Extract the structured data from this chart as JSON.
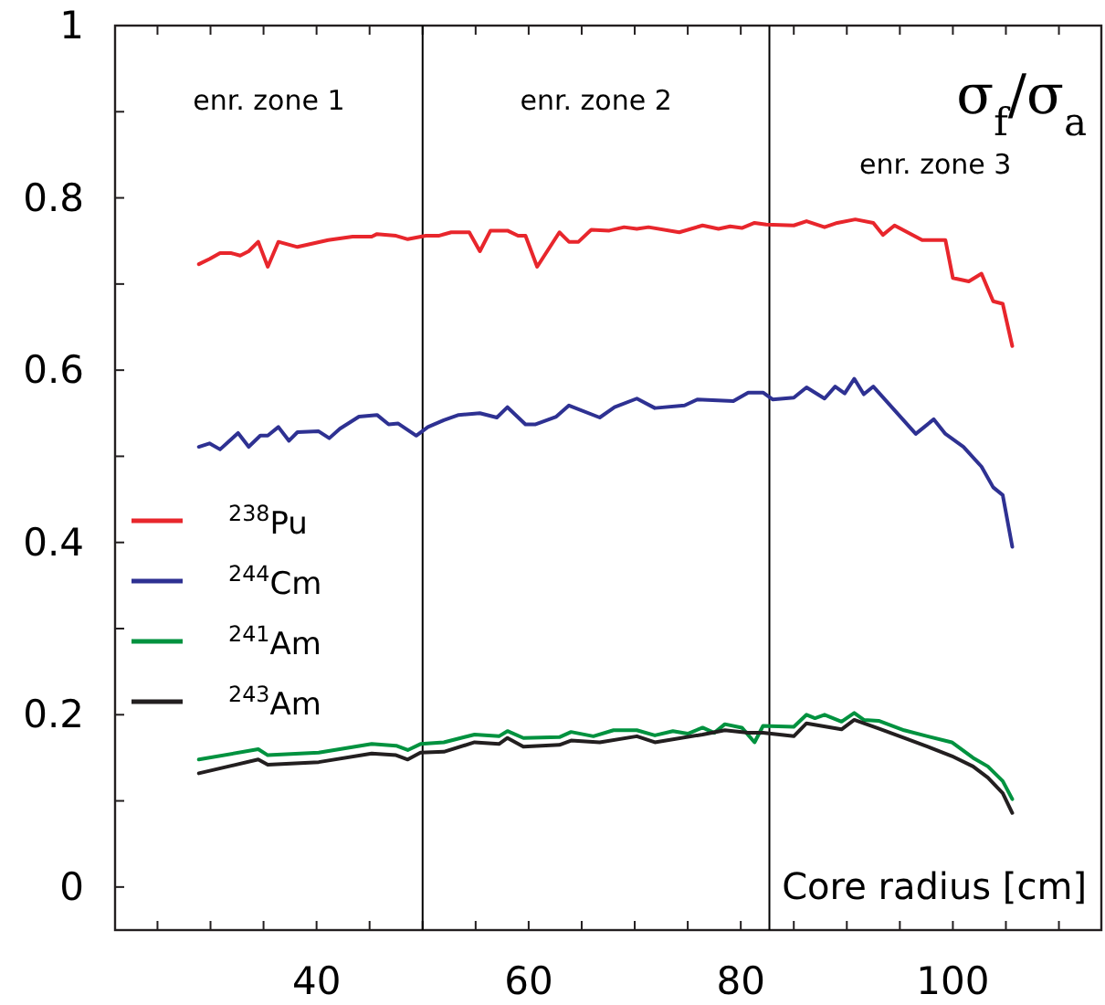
{
  "chart_data": {
    "type": "line",
    "title": "σ$_{f}$/σ$_{a}$",
    "xlabel": "Core radius [cm]",
    "annotations": [
      "enr. zone 1",
      "enr. zone 2",
      "enr. zone 3"
    ],
    "xlim": [
      21,
      114
    ],
    "ylim": [
      -0.05,
      1
    ],
    "xticks": [
      {
        "value": 25,
        "label": null
      },
      {
        "value": 30,
        "label": null
      },
      {
        "value": 35,
        "label": null
      },
      40,
      {
        "value": 45,
        "label": null
      },
      {
        "value": 50,
        "label": null
      },
      {
        "value": 55,
        "label": null
      },
      60,
      {
        "value": 65,
        "label": null
      },
      {
        "value": 70,
        "label": null
      },
      {
        "value": 75,
        "label": null
      },
      80,
      {
        "value": 85,
        "label": null
      },
      {
        "value": 90,
        "label": null
      },
      {
        "value": 95,
        "label": null
      },
      100,
      {
        "value": 105,
        "label": null
      },
      {
        "value": 110,
        "label": null
      }
    ],
    "yticks": [
      0,
      {
        "value": 0.1,
        "label": null
      },
      0.2,
      {
        "value": 0.3,
        "label": null
      },
      0.4,
      {
        "value": 0.5,
        "label": null
      },
      0.6,
      {
        "value": 0.7,
        "label": null
      },
      0.8,
      {
        "value": 0.9,
        "label": null
      },
      1
    ],
    "ref_lines": [
      {
        "axis": "x",
        "value": 50,
        "color": "#000000"
      },
      {
        "axis": "x",
        "value": 82.7,
        "color": "#000000"
      }
    ],
    "legend": "left",
    "grid": false,
    "marker": "none",
    "line_style": "solid",
    "series": [
      {
        "name": "$^{238}$Pu",
        "color": "#e8262c",
        "x": [
          28.9,
          29.9,
          30.9,
          31.9,
          32.8,
          33.6,
          34.5,
          35.4,
          36.4,
          38.2,
          41.1,
          43.4,
          45.2,
          45.7,
          47.5,
          48.6,
          50.3,
          51.5,
          52.7,
          54.4,
          55.4,
          56.4,
          58,
          59,
          59.7,
          60.8,
          62.9,
          63.8,
          64.7,
          65.9,
          67.6,
          69,
          70.2,
          71.3,
          74.2,
          76.4,
          77.9,
          79,
          80.1,
          81.3,
          82.4,
          85,
          86.2,
          87.9,
          89.1,
          90.8,
          92.5,
          93.4,
          94.5,
          97.1,
          99.3,
          100,
          101.5,
          102.7,
          103.8,
          104.7,
          105.6
        ],
        "values": [
          0.723,
          0.729,
          0.736,
          0.736,
          0.733,
          0.738,
          0.749,
          0.72,
          0.749,
          0.743,
          0.751,
          0.755,
          0.755,
          0.758,
          0.756,
          0.752,
          0.756,
          0.756,
          0.76,
          0.76,
          0.738,
          0.762,
          0.762,
          0.756,
          0.756,
          0.72,
          0.76,
          0.749,
          0.749,
          0.763,
          0.762,
          0.766,
          0.764,
          0.766,
          0.76,
          0.768,
          0.764,
          0.767,
          0.765,
          0.771,
          0.769,
          0.768,
          0.773,
          0.766,
          0.771,
          0.775,
          0.771,
          0.757,
          0.768,
          0.751,
          0.751,
          0.707,
          0.703,
          0.712,
          0.68,
          0.677,
          0.628
        ]
      },
      {
        "name": "$^{244}$Cm",
        "color": "#2e3192",
        "x": [
          28.9,
          29.9,
          30.9,
          32.6,
          33.6,
          34.7,
          35.4,
          36.4,
          37.4,
          38.2,
          40.2,
          41.2,
          42.2,
          44,
          45.7,
          46.8,
          47.7,
          49.4,
          50.5,
          52,
          53.4,
          55.4,
          57,
          58,
          59.7,
          60.6,
          62.6,
          63.8,
          66.7,
          68.1,
          70.2,
          71.9,
          74.7,
          75.9,
          79.3,
          80.7,
          82.1,
          83,
          85,
          86.2,
          87.9,
          88.9,
          89.8,
          90.7,
          91.6,
          92.5,
          96.5,
          98.2,
          99.3,
          101,
          102.7,
          103.8,
          104.7,
          105.6
        ],
        "values": [
          0.511,
          0.515,
          0.508,
          0.527,
          0.511,
          0.524,
          0.524,
          0.534,
          0.518,
          0.528,
          0.529,
          0.521,
          0.532,
          0.546,
          0.548,
          0.537,
          0.538,
          0.524,
          0.534,
          0.542,
          0.548,
          0.55,
          0.545,
          0.557,
          0.537,
          0.537,
          0.546,
          0.559,
          0.545,
          0.557,
          0.567,
          0.556,
          0.559,
          0.566,
          0.564,
          0.574,
          0.574,
          0.566,
          0.568,
          0.58,
          0.567,
          0.581,
          0.573,
          0.59,
          0.572,
          0.581,
          0.526,
          0.543,
          0.526,
          0.511,
          0.488,
          0.464,
          0.455,
          0.395
        ]
      },
      {
        "name": "$^{241}$Am",
        "color": "#00923f",
        "x": [
          28.9,
          34.5,
          35.4,
          40.2,
          45.2,
          47.5,
          48.6,
          49.8,
          52,
          54.9,
          57.2,
          58,
          59.5,
          62.9,
          64,
          66.1,
          68,
          70.2,
          71.9,
          73.6,
          75,
          76.4,
          77.5,
          78.5,
          80.1,
          81.3,
          82.1,
          85,
          86.2,
          87,
          87.9,
          89.5,
          90.7,
          91.6,
          93,
          95.4,
          97.6,
          99.9,
          101.9,
          103.3,
          104.7,
          105.6
        ],
        "values": [
          0.148,
          0.16,
          0.153,
          0.156,
          0.166,
          0.164,
          0.159,
          0.166,
          0.168,
          0.177,
          0.175,
          0.181,
          0.173,
          0.174,
          0.18,
          0.175,
          0.182,
          0.182,
          0.176,
          0.181,
          0.178,
          0.185,
          0.179,
          0.189,
          0.185,
          0.168,
          0.187,
          0.186,
          0.2,
          0.196,
          0.2,
          0.192,
          0.202,
          0.194,
          0.193,
          0.182,
          0.175,
          0.168,
          0.15,
          0.14,
          0.123,
          0.102
        ]
      },
      {
        "name": "$^{243}$Am",
        "color": "#231f20",
        "x": [
          28.9,
          34.5,
          35.4,
          40.2,
          45.2,
          47.5,
          48.6,
          49.8,
          52,
          54.9,
          57.2,
          58,
          59.5,
          62.9,
          64,
          66.7,
          70.2,
          71.9,
          76.4,
          78.5,
          80.7,
          82.1,
          85,
          86.2,
          89.5,
          90.7,
          93,
          95.4,
          97.6,
          99.9,
          101.9,
          103.3,
          104.7,
          105.6
        ],
        "values": [
          0.132,
          0.148,
          0.142,
          0.145,
          0.155,
          0.153,
          0.148,
          0.156,
          0.157,
          0.168,
          0.166,
          0.173,
          0.163,
          0.165,
          0.17,
          0.168,
          0.175,
          0.168,
          0.177,
          0.182,
          0.179,
          0.179,
          0.175,
          0.19,
          0.183,
          0.194,
          0.184,
          0.173,
          0.163,
          0.152,
          0.14,
          0.127,
          0.109,
          0.086
        ]
      }
    ]
  }
}
